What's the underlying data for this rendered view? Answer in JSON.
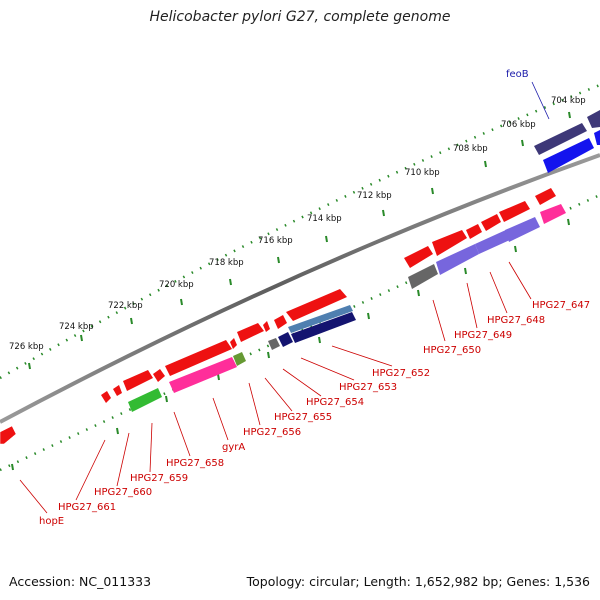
{
  "title": "Helicobacter pylori G27, complete genome",
  "footer": {
    "accession": "Accession: NC_011333",
    "summary": "Topology: circular; Length: 1,652,982 bp; Genes: 1,536"
  },
  "map": {
    "tick_labels": [
      "726 kbp",
      "724 kbp",
      "722 kbp",
      "720 kbp",
      "718 kbp",
      "716 kbp",
      "714 kbp",
      "712 kbp",
      "710 kbp",
      "708 kbp",
      "706 kbp",
      "704 kbp"
    ],
    "gene_labels": [
      "feoB",
      "HPG27_647",
      "HPG27_648",
      "HPG27_649",
      "HPG27_650",
      "HPG27_652",
      "HPG27_653",
      "HPG27_654",
      "HPG27_655",
      "HPG27_656",
      "gyrA",
      "HPG27_658",
      "HPG27_659",
      "HPG27_660",
      "HPG27_661",
      "hopE"
    ],
    "colors": {
      "backbone": "#7a7a7a",
      "tick_dots": "#2a8a2a",
      "gene_red": "#ee1111",
      "gene_pink": "#ff2e9a",
      "gene_green": "#33bb33",
      "gene_blue": "#1414ee",
      "gene_navy": "#141470",
      "gene_steel": "#4f7fb0",
      "gene_violet": "#7766dd",
      "gene_gray": "#666666",
      "label_red": "#cc0000",
      "label_blue": "#1a1aaa"
    }
  }
}
